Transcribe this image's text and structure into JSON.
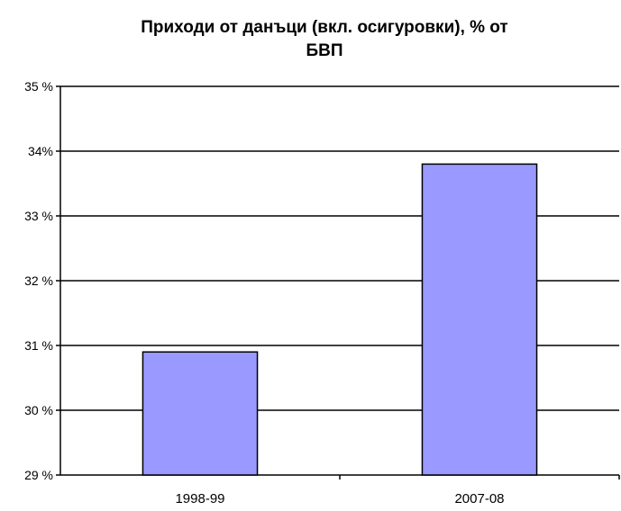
{
  "chart_data": {
    "type": "bar",
    "title_line1": "Приходи от данъци (вкл. осигуровки), % от",
    "title_line2": "БВП",
    "categories": [
      "1998-99",
      "2007-08"
    ],
    "values": [
      30.9,
      33.8
    ],
    "ylim": [
      29,
      35
    ],
    "yticks": [
      29,
      30,
      31,
      32,
      33,
      34,
      35
    ],
    "ytick_labels": [
      "29 %",
      "30 %",
      "31 %",
      "32 %",
      "33 %",
      "34%",
      "35 %"
    ],
    "grid": true,
    "legend": "none",
    "colors": {
      "bar_fill": "#9999ff",
      "bar_stroke": "#000000",
      "grid": "#000000"
    }
  }
}
